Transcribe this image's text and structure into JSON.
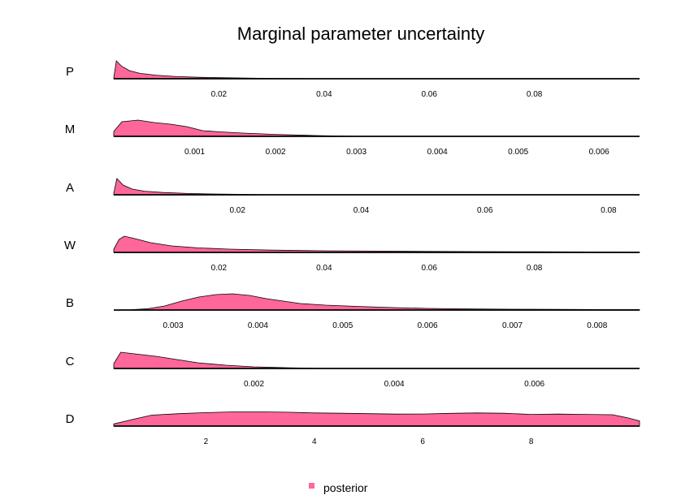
{
  "chart_data": {
    "type": "area",
    "title": "Marginal parameter uncertainty",
    "legend": {
      "label": "posterior",
      "color": "#FF6699",
      "placement": "bottom"
    },
    "colors": {
      "fill": "#FF6699",
      "stroke": "#000000"
    },
    "panels": [
      {
        "label": "P",
        "xlim": [
          0.0,
          0.1
        ],
        "ticks": [
          0.02,
          0.04,
          0.06,
          0.08
        ],
        "tick_labels": [
          "0.02",
          "0.04",
          "0.06",
          "0.08"
        ],
        "x": [
          0.0,
          0.0005,
          0.0015,
          0.003,
          0.005,
          0.008,
          0.012,
          0.016,
          0.02,
          0.025,
          0.03,
          0.035,
          0.04
        ],
        "y": [
          0.05,
          1.0,
          0.7,
          0.45,
          0.3,
          0.2,
          0.12,
          0.08,
          0.06,
          0.04,
          0.02,
          0.01,
          0.0
        ]
      },
      {
        "label": "M",
        "xlim": [
          0.0,
          0.0065
        ],
        "ticks": [
          0.001,
          0.002,
          0.003,
          0.004,
          0.005,
          0.006
        ],
        "tick_labels": [
          "0.001",
          "0.002",
          "0.003",
          "0.004",
          "0.005",
          "0.006"
        ],
        "x": [
          0.0,
          0.0001,
          0.0003,
          0.0005,
          0.0007,
          0.0009,
          0.0011,
          0.0013,
          0.0016,
          0.002,
          0.0025,
          0.003
        ],
        "y": [
          0.3,
          0.9,
          1.0,
          0.85,
          0.75,
          0.6,
          0.35,
          0.28,
          0.2,
          0.12,
          0.05,
          0.0
        ]
      },
      {
        "label": "A",
        "xlim": [
          0.0,
          0.085
        ],
        "ticks": [
          0.02,
          0.04,
          0.06,
          0.08
        ],
        "tick_labels": [
          "0.02",
          "0.04",
          "0.06",
          "0.08"
        ],
        "x": [
          0.0,
          0.0005,
          0.0015,
          0.003,
          0.005,
          0.008,
          0.012,
          0.016,
          0.02,
          0.025
        ],
        "y": [
          0.1,
          1.0,
          0.6,
          0.35,
          0.22,
          0.14,
          0.08,
          0.05,
          0.03,
          0.0
        ]
      },
      {
        "label": "W",
        "xlim": [
          0.0,
          0.1
        ],
        "ticks": [
          0.02,
          0.04,
          0.06,
          0.08
        ],
        "tick_labels": [
          "0.02",
          "0.04",
          "0.06",
          "0.08"
        ],
        "x": [
          0.0,
          0.001,
          0.002,
          0.004,
          0.007,
          0.011,
          0.016,
          0.022,
          0.03,
          0.04,
          0.05,
          0.06,
          0.07,
          0.08,
          0.09,
          0.1
        ],
        "y": [
          0.2,
          0.8,
          1.0,
          0.85,
          0.6,
          0.4,
          0.28,
          0.2,
          0.14,
          0.1,
          0.08,
          0.06,
          0.05,
          0.04,
          0.03,
          0.02
        ]
      },
      {
        "label": "B",
        "xlim": [
          0.0023,
          0.0085
        ],
        "ticks": [
          0.003,
          0.004,
          0.005,
          0.006,
          0.007,
          0.008
        ],
        "tick_labels": [
          "0.003",
          "0.004",
          "0.005",
          "0.006",
          "0.007",
          "0.008"
        ],
        "x": [
          0.0023,
          0.0025,
          0.0027,
          0.0029,
          0.0031,
          0.0033,
          0.0035,
          0.0037,
          0.0039,
          0.0041,
          0.0043,
          0.0045,
          0.0048,
          0.0052,
          0.0056,
          0.006,
          0.0065,
          0.007,
          0.0075,
          0.008,
          0.0085
        ],
        "y": [
          0.0,
          0.02,
          0.08,
          0.25,
          0.55,
          0.8,
          0.95,
          1.0,
          0.9,
          0.7,
          0.55,
          0.4,
          0.3,
          0.22,
          0.15,
          0.1,
          0.07,
          0.05,
          0.04,
          0.03,
          0.03
        ]
      },
      {
        "label": "C",
        "xlim": [
          0.0,
          0.0075
        ],
        "ticks": [
          0.002,
          0.004,
          0.006
        ],
        "tick_labels": [
          "0.002",
          "0.004",
          "0.006"
        ],
        "x": [
          0.0,
          0.0001,
          0.0003,
          0.0006,
          0.0009,
          0.0012,
          0.0016,
          0.002,
          0.0025,
          0.003
        ],
        "y": [
          0.3,
          1.0,
          0.9,
          0.75,
          0.55,
          0.35,
          0.2,
          0.1,
          0.04,
          0.0
        ]
      },
      {
        "label": "D",
        "xlim": [
          0.3,
          10.0
        ],
        "ticks": [
          2,
          4,
          6,
          8
        ],
        "tick_labels": [
          "2",
          "4",
          "6",
          "8"
        ],
        "x": [
          0.3,
          0.7,
          1.0,
          1.5,
          2.0,
          2.5,
          3.0,
          3.5,
          4.0,
          4.5,
          5.0,
          5.5,
          6.0,
          6.5,
          7.0,
          7.5,
          8.0,
          8.5,
          9.0,
          9.5,
          9.8,
          10.0
        ],
        "y": [
          0.15,
          0.5,
          0.75,
          0.85,
          0.92,
          0.97,
          0.97,
          0.95,
          0.9,
          0.88,
          0.85,
          0.82,
          0.83,
          0.87,
          0.9,
          0.88,
          0.8,
          0.82,
          0.8,
          0.78,
          0.55,
          0.35
        ]
      }
    ]
  }
}
